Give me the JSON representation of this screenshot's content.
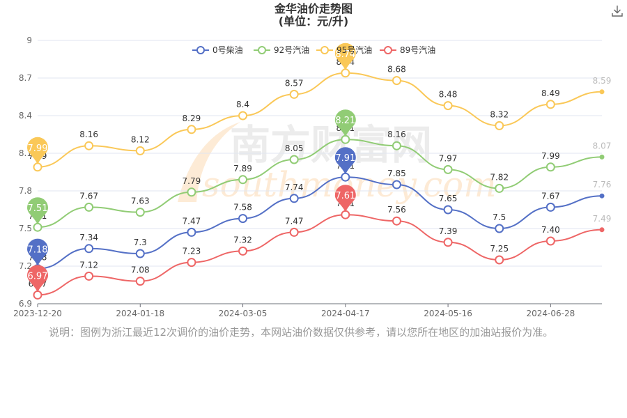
{
  "header": {
    "title": "金华油价走势图",
    "subtitle": "(单位：元/升)"
  },
  "toolbar": {
    "download_icon": "download-icon"
  },
  "watermark": {
    "cn": "南方财富网",
    "en": "southmoney.com"
  },
  "note": "说明：图例为浙江最近12次调价的油价走势，本网站油价数据仅供参考，请以您所在地区的加油站报价为准。",
  "chart_data": {
    "type": "line",
    "title": "金华油价走势图",
    "subtitle": "(单位：元/升)",
    "xlabel": "",
    "ylabel": "",
    "ylim": [
      6.9,
      9
    ],
    "yticks": [
      6.9,
      7.2,
      7.5,
      7.8,
      8.1,
      8.4,
      8.7,
      9
    ],
    "ytick_labels": [
      "6.9",
      "7.2",
      "7.5",
      "7.8",
      "8.1",
      "8.4",
      "8.7",
      "9"
    ],
    "grid": true,
    "legend_position": "top-center",
    "x_tick_labels": [
      "2023-12-20",
      "2024-01-18",
      "2024-03-05",
      "2024-04-17",
      "2024-05-16",
      "2024-06-28"
    ],
    "x_tick_index": [
      0,
      2,
      4,
      6,
      8,
      10
    ],
    "point_count": 12,
    "series": [
      {
        "name": "0号柴油",
        "color": "#5470c6",
        "values": [
          7.18,
          7.34,
          7.3,
          7.47,
          7.58,
          7.74,
          7.91,
          7.85,
          7.65,
          7.5,
          7.67,
          7.76
        ],
        "labels": [
          "7.18",
          "7.34",
          "7.3",
          "7.47",
          "7.58",
          "7.74",
          "7.91",
          "7.85",
          "7.65",
          "7.5",
          "7.67",
          "7.76"
        ],
        "pins": [
          0,
          6
        ]
      },
      {
        "name": "92号汽油",
        "color": "#91cc75",
        "values": [
          7.51,
          7.67,
          7.63,
          7.79,
          7.89,
          8.05,
          8.21,
          8.16,
          7.97,
          7.82,
          7.99,
          8.07
        ],
        "labels": [
          "7.51",
          "7.67",
          "7.63",
          "7.79",
          "7.89",
          "8.05",
          "8.21",
          "8.16",
          "7.97",
          "7.82",
          "7.99",
          "8.07"
        ],
        "pins": [
          0,
          6
        ]
      },
      {
        "name": "95号汽油",
        "color": "#fac858",
        "values": [
          7.99,
          8.16,
          8.12,
          8.29,
          8.4,
          8.57,
          8.74,
          8.68,
          8.48,
          8.32,
          8.49,
          8.59
        ],
        "labels": [
          "7.99",
          "8.16",
          "8.12",
          "8.29",
          "8.4",
          "8.57",
          "8.74",
          "8.68",
          "8.48",
          "8.32",
          "8.49",
          "8.59"
        ],
        "pins": [
          0,
          6
        ]
      },
      {
        "name": "89号汽油",
        "color": "#ee6666",
        "values": [
          6.97,
          7.12,
          7.08,
          7.23,
          7.32,
          7.47,
          7.61,
          7.56,
          7.39,
          7.25,
          7.4,
          7.49
        ],
        "labels": [
          "6.97",
          "7.12",
          "7.08",
          "7.23",
          "7.32",
          "7.47",
          "7.61",
          "7.56",
          "7.39",
          "7.25",
          "7.40",
          "7.49"
        ],
        "pins": [
          0,
          6
        ]
      }
    ]
  }
}
